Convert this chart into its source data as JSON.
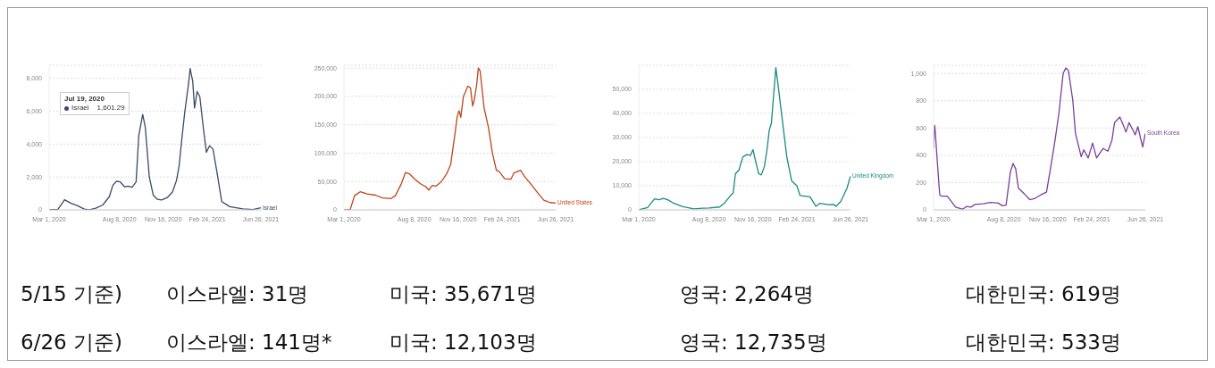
{
  "chart_data": [
    {
      "type": "line",
      "x": [
        "2020-03-01",
        "2020-03-21",
        "2020-04-01",
        "2020-04-05",
        "2020-04-20",
        "2020-05-05",
        "2020-05-20",
        "2020-06-01",
        "2020-06-15",
        "2020-07-01",
        "2020-07-16",
        "2020-07-24",
        "2020-08-02",
        "2020-08-10",
        "2020-08-20",
        "2020-08-27",
        "2020-09-06",
        "2020-09-15",
        "2020-09-21",
        "2020-09-30",
        "2020-10-06",
        "2020-10-15",
        "2020-10-24",
        "2020-11-02",
        "2020-11-12",
        "2020-11-25",
        "2020-12-07",
        "2020-12-16",
        "2020-12-22",
        "2020-12-28",
        "2021-01-04",
        "2021-01-12",
        "2021-01-16",
        "2021-01-22",
        "2021-01-26",
        "2021-02-01",
        "2021-02-07",
        "2021-02-15",
        "2021-02-22",
        "2021-03-01",
        "2021-03-09",
        "2021-03-18",
        "2021-03-29",
        "2021-04-16",
        "2021-05-16",
        "2021-06-08",
        "2021-06-26"
      ],
      "series": [
        {
          "name": "Israel",
          "color": "#3b4a63",
          "values": [
            0,
            30,
            450,
            620,
            400,
            250,
            50,
            10,
            100,
            300,
            800,
            1500,
            1750,
            1700,
            1400,
            1450,
            1380,
            1700,
            4500,
            5800,
            5000,
            2000,
            900,
            650,
            600,
            750,
            1100,
            1800,
            2700,
            4300,
            6000,
            7600,
            8600,
            7800,
            6200,
            7200,
            6900,
            5000,
            3500,
            3900,
            3700,
            2300,
            500,
            200,
            60,
            20,
            130
          ]
        }
      ],
      "xlim": [
        "2020-03-01",
        "2021-06-26"
      ],
      "xticks": [
        {
          "value": "2020-03-01",
          "label": "Mar 1, 2020"
        },
        {
          "value": "2020-08-08",
          "label": "Aug 8, 2020"
        },
        {
          "value": "2020-11-16",
          "label": "Nov 16, 2020"
        },
        {
          "value": "2021-02-24",
          "label": "Feb 24, 2021"
        },
        {
          "value": "2021-06-26",
          "label": "Jun 26, 2021"
        }
      ],
      "ylim": [
        0,
        8800
      ],
      "yticks": [
        0,
        {
          "value": 2000,
          "label": "2,000"
        },
        {
          "value": 4000,
          "label": "4,000"
        },
        {
          "value": 6000,
          "label": "6,000"
        },
        {
          "value": 8000,
          "label": "8,000"
        }
      ],
      "grid": "y",
      "line_style": "solid",
      "annotations": [
        "Jul 19, 2020",
        "Israel",
        "1,601.29"
      ]
    },
    {
      "type": "line",
      "x": [
        "2020-03-01",
        "2020-03-15",
        "2020-03-25",
        "2020-04-07",
        "2020-04-23",
        "2020-05-12",
        "2020-05-28",
        "2020-06-16",
        "2020-06-26",
        "2020-07-09",
        "2020-07-19",
        "2020-07-29",
        "2020-08-08",
        "2020-08-22",
        "2020-09-03",
        "2020-09-10",
        "2020-09-18",
        "2020-09-27",
        "2020-10-09",
        "2020-10-21",
        "2020-10-30",
        "2020-11-08",
        "2020-11-14",
        "2020-11-18",
        "2020-11-22",
        "2020-11-28",
        "2020-12-08",
        "2020-12-14",
        "2020-12-19",
        "2020-12-23",
        "2020-12-28",
        "2021-01-01",
        "2021-01-05",
        "2021-01-14",
        "2021-01-24",
        "2021-02-02",
        "2021-02-11",
        "2021-02-17",
        "2021-03-02",
        "2021-03-16",
        "2021-03-23",
        "2021-04-07",
        "2021-04-17",
        "2021-05-01",
        "2021-05-16",
        "2021-05-30",
        "2021-06-13",
        "2021-06-26"
      ],
      "series": [
        {
          "name": "United States",
          "color": "#c0451b",
          "values": [
            0,
            0,
            25000,
            32000,
            28000,
            26000,
            21000,
            20000,
            25000,
            45000,
            66000,
            63000,
            55000,
            46000,
            41000,
            35000,
            43000,
            42000,
            50000,
            64000,
            80000,
            130000,
            165000,
            175000,
            163000,
            200000,
            218000,
            215000,
            183000,
            195000,
            220000,
            250000,
            245000,
            180000,
            145000,
            100000,
            70000,
            68000,
            55000,
            54000,
            65000,
            70000,
            58000,
            45000,
            30000,
            17000,
            13000,
            12000
          ]
        }
      ],
      "xlim": [
        "2020-03-01",
        "2021-06-26"
      ],
      "xticks": [
        {
          "value": "2020-03-01",
          "label": "Mar 1, 2020"
        },
        {
          "value": "2020-08-08",
          "label": "Aug 8, 2020"
        },
        {
          "value": "2020-11-16",
          "label": "Nov 16, 2020"
        },
        {
          "value": "2021-02-24",
          "label": "Feb 24, 2021"
        },
        {
          "value": "2021-06-26",
          "label": "Jun 26, 2021"
        }
      ],
      "ylim": [
        0,
        255000
      ],
      "yticks": [
        0,
        {
          "value": 50000,
          "label": "50,000"
        },
        {
          "value": 100000,
          "label": "100,000"
        },
        {
          "value": 150000,
          "label": "150,000"
        },
        {
          "value": 200000,
          "label": "200,000"
        },
        {
          "value": 250000,
          "label": "250,000"
        }
      ],
      "grid": "y",
      "line_style": "solid"
    },
    {
      "type": "line",
      "x": [
        "2020-03-01",
        "2020-03-21",
        "2020-04-06",
        "2020-04-16",
        "2020-04-26",
        "2020-05-06",
        "2020-05-19",
        "2020-06-08",
        "2020-07-04",
        "2020-07-24",
        "2020-08-08",
        "2020-09-01",
        "2020-09-13",
        "2020-09-26",
        "2020-10-02",
        "2020-10-07",
        "2020-10-15",
        "2020-10-24",
        "2020-11-03",
        "2020-11-10",
        "2020-11-16",
        "2020-11-21",
        "2020-11-29",
        "2020-12-05",
        "2020-12-12",
        "2020-12-18",
        "2020-12-23",
        "2020-12-28",
        "2021-01-07",
        "2021-01-12",
        "2021-01-22",
        "2021-02-01",
        "2021-02-12",
        "2021-02-24",
        "2021-03-03",
        "2021-03-26",
        "2021-04-08",
        "2021-04-17",
        "2021-05-06",
        "2021-05-19",
        "2021-05-24",
        "2021-06-04",
        "2021-06-18",
        "2021-06-26"
      ],
      "series": [
        {
          "name": "United Kingdom",
          "color": "#1a8a80",
          "values": [
            0,
            1000,
            4600,
            4200,
            4800,
            4200,
            2800,
            1400,
            400,
            700,
            800,
            1200,
            3000,
            6000,
            7000,
            15000,
            16500,
            22000,
            23000,
            22500,
            25000,
            21000,
            15000,
            14500,
            18000,
            25000,
            33000,
            36000,
            59000,
            52000,
            37000,
            22000,
            12000,
            10000,
            6000,
            5400,
            1500,
            2700,
            2200,
            2300,
            1500,
            3500,
            9000,
            14000
          ]
        }
      ],
      "xlim": [
        "2020-03-01",
        "2021-06-26"
      ],
      "xticks": [
        {
          "value": "2020-03-01",
          "label": "Mar 1, 2020"
        },
        {
          "value": "2020-08-08",
          "label": "Aug 8, 2020"
        },
        {
          "value": "2020-11-16",
          "label": "Nov 16, 2020"
        },
        {
          "value": "2021-02-24",
          "label": "Feb 24, 2021"
        },
        {
          "value": "2021-06-26",
          "label": "Jun 26, 2021"
        }
      ],
      "ylim": [
        0,
        60000
      ],
      "yticks": [
        0,
        {
          "value": 10000,
          "label": "10,000"
        },
        {
          "value": 20000,
          "label": "20,000"
        },
        {
          "value": 30000,
          "label": "30,000"
        },
        {
          "value": 40000,
          "label": "40,000"
        },
        {
          "value": 50000,
          "label": "50,000"
        }
      ],
      "grid": "y",
      "line_style": "solid"
    },
    {
      "type": "line",
      "x": [
        "2020-03-01",
        "2020-03-03",
        "2020-03-04",
        "2020-03-10",
        "2020-03-15",
        "2020-03-20",
        "2020-04-01",
        "2020-04-11",
        "2020-04-20",
        "2020-05-06",
        "2020-05-15",
        "2020-05-25",
        "2020-06-03",
        "2020-06-22",
        "2020-07-08",
        "2020-07-26",
        "2020-08-05",
        "2020-08-13",
        "2020-08-23",
        "2020-08-29",
        "2020-09-04",
        "2020-09-10",
        "2020-09-23",
        "2020-10-06",
        "2020-10-18",
        "2020-10-31",
        "2020-11-13",
        "2020-11-22",
        "2020-12-02",
        "2020-12-11",
        "2020-12-21",
        "2020-12-27",
        "2021-01-02",
        "2021-01-12",
        "2021-01-18",
        "2021-01-31",
        "2021-02-06",
        "2021-02-16",
        "2021-02-26",
        "2021-03-07",
        "2021-03-22",
        "2021-04-02",
        "2021-04-11",
        "2021-04-17",
        "2021-04-29",
        "2021-05-07",
        "2021-05-13",
        "2021-05-20",
        "2021-05-28",
        "2021-06-03",
        "2021-06-09",
        "2021-06-20",
        "2021-06-26"
      ],
      "series": [
        {
          "name": "South Korea",
          "color": "#7a3f9a",
          "values": [
            450,
            620,
            610,
            330,
            110,
            100,
            100,
            60,
            20,
            5,
            25,
            20,
            40,
            45,
            55,
            50,
            30,
            35,
            280,
            340,
            300,
            160,
            120,
            75,
            85,
            110,
            130,
            300,
            500,
            700,
            1000,
            1040,
            1020,
            800,
            560,
            390,
            440,
            380,
            490,
            380,
            450,
            430,
            510,
            640,
            680,
            620,
            570,
            640,
            590,
            550,
            610,
            460,
            560
          ]
        }
      ],
      "xlim": [
        "2020-03-01",
        "2021-06-26"
      ],
      "xticks": [
        {
          "value": "2020-03-01",
          "label": "Mar 1, 2020"
        },
        {
          "value": "2020-08-08",
          "label": "Aug 8, 2020"
        },
        {
          "value": "2020-11-16",
          "label": "Nov 16, 2020"
        },
        {
          "value": "2021-02-24",
          "label": "Feb 24, 2021"
        },
        {
          "value": "2021-06-26",
          "label": "Jun 26, 2021"
        }
      ],
      "ylim": [
        0,
        1060
      ],
      "yticks": [
        0,
        200,
        400,
        600,
        800,
        {
          "value": 1000,
          "label": "1,000"
        }
      ],
      "grid": "y",
      "line_style": "solid"
    },
    {
      "type": "other",
      "annotations": [
        "5/15 기준)",
        "이스라엘: 31명",
        "미국: 35,671명",
        "영국: 2,264명",
        "대한민국: 619명",
        "6/26 기준)",
        "이스라엘: 141명*",
        "미국: 12,103명",
        "영국: 12,735명",
        "대한민국: 533명"
      ]
    }
  ]
}
